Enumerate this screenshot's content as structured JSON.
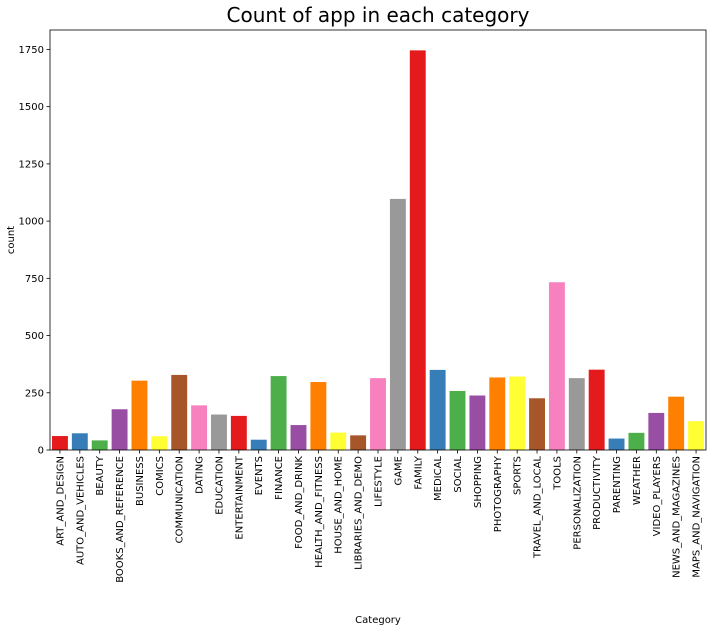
{
  "chart_data": {
    "type": "bar",
    "title": "Count of app in each category",
    "xlabel": "Category",
    "ylabel": "count",
    "ylim": [
      0,
      1835
    ],
    "yticks": [
      0,
      250,
      500,
      750,
      1000,
      1250,
      1500,
      1750
    ],
    "grid": false,
    "categories": [
      "ART_AND_DESIGN",
      "AUTO_AND_VEHICLES",
      "BEAUTY",
      "BOOKS_AND_REFERENCE",
      "BUSINESS",
      "COMICS",
      "COMMUNICATION",
      "DATING",
      "EDUCATION",
      "ENTERTAINMENT",
      "EVENTS",
      "FINANCE",
      "FOOD_AND_DRINK",
      "HEALTH_AND_FITNESS",
      "HOUSE_AND_HOME",
      "LIBRARIES_AND_DEMO",
      "LIFESTYLE",
      "GAME",
      "FAMILY",
      "MEDICAL",
      "SOCIAL",
      "SHOPPING",
      "PHOTOGRAPHY",
      "SPORTS",
      "TRAVEL_AND_LOCAL",
      "TOOLS",
      "PERSONALIZATION",
      "PRODUCTIVITY",
      "PARENTING",
      "WEATHER",
      "VIDEO_PLAYERS",
      "NEWS_AND_MAGAZINES",
      "MAPS_AND_NAVIGATION"
    ],
    "values": [
      61,
      73,
      42,
      178,
      303,
      60,
      328,
      195,
      155,
      149,
      45,
      323,
      109,
      297,
      76,
      64,
      314,
      1097,
      1746,
      350,
      258,
      238,
      317,
      321,
      226,
      733,
      314,
      351,
      50,
      75,
      162,
      233,
      126
    ],
    "colors": [
      "#e41a1c",
      "#377eb8",
      "#4daf4a",
      "#984ea3",
      "#ff7f00",
      "#ffff33",
      "#a65628",
      "#f781bf",
      "#999999"
    ]
  }
}
